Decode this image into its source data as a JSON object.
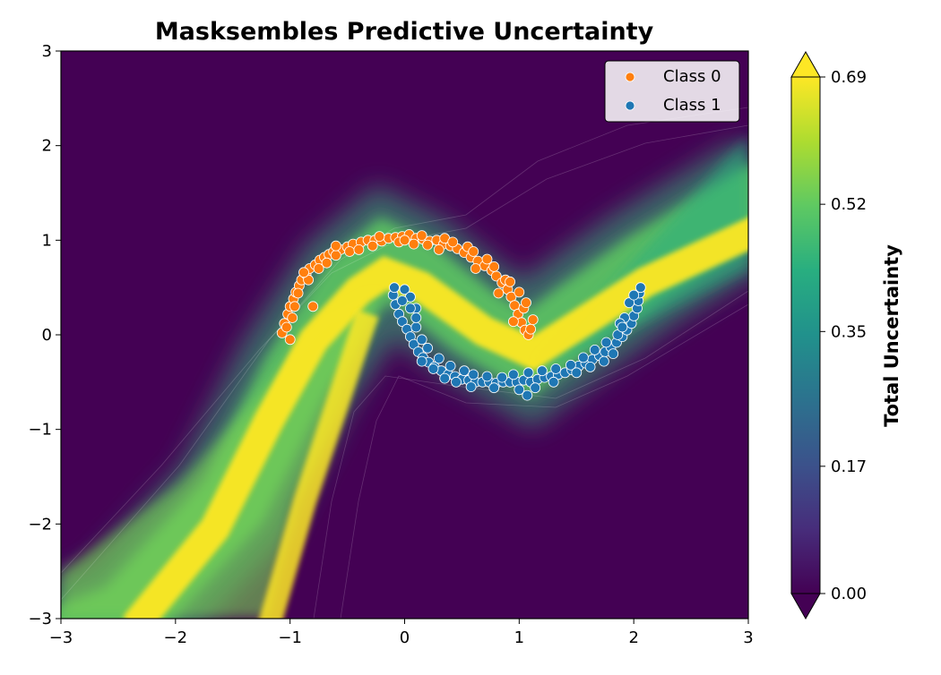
{
  "chart_data": {
    "type": "scatter",
    "title": "Masksembles Predictive Uncertainty",
    "xlabel": "",
    "ylabel": "",
    "xlim": [
      -3,
      3
    ],
    "ylim": [
      -3,
      3
    ],
    "xticks": [
      -3,
      -2,
      -1,
      0,
      1,
      2,
      3
    ],
    "yticks": [
      -3,
      -2,
      -1,
      0,
      1,
      2,
      3
    ],
    "xtick_labels": [
      "−3",
      "−2",
      "−1",
      "0",
      "1",
      "2",
      "3"
    ],
    "ytick_labels": [
      "−3",
      "−2",
      "−1",
      "0",
      "1",
      "2",
      "3"
    ],
    "grid": false,
    "legend_position": "top-right",
    "series": [
      {
        "name": "Class 0",
        "color": "#ff7f0e",
        "points": [
          [
            -1.07,
            0.02
          ],
          [
            -1.05,
            0.12
          ],
          [
            -1.02,
            0.22
          ],
          [
            -1.0,
            0.3
          ],
          [
            -0.97,
            0.38
          ],
          [
            -0.95,
            0.45
          ],
          [
            -0.92,
            0.52
          ],
          [
            -0.9,
            0.58
          ],
          [
            -0.86,
            0.64
          ],
          [
            -0.83,
            0.7
          ],
          [
            -0.78,
            0.74
          ],
          [
            -0.74,
            0.79
          ],
          [
            -0.7,
            0.82
          ],
          [
            -0.66,
            0.85
          ],
          [
            -0.62,
            0.88
          ],
          [
            -0.56,
            0.9
          ],
          [
            -0.5,
            0.93
          ],
          [
            -0.45,
            0.96
          ],
          [
            -0.38,
            0.98
          ],
          [
            -0.32,
            1.0
          ],
          [
            -0.26,
            1.0
          ],
          [
            -0.2,
            0.99
          ],
          [
            -0.14,
            1.02
          ],
          [
            -0.08,
            1.03
          ],
          [
            -0.02,
            1.04
          ],
          [
            0.04,
            1.06
          ],
          [
            0.1,
            1.02
          ],
          [
            0.16,
            1.01
          ],
          [
            0.22,
            0.99
          ],
          [
            0.28,
            1.0
          ],
          [
            0.34,
            0.96
          ],
          [
            0.4,
            0.94
          ],
          [
            0.46,
            0.91
          ],
          [
            0.52,
            0.87
          ],
          [
            0.58,
            0.82
          ],
          [
            0.64,
            0.78
          ],
          [
            0.7,
            0.73
          ],
          [
            0.76,
            0.68
          ],
          [
            0.8,
            0.62
          ],
          [
            0.85,
            0.55
          ],
          [
            0.9,
            0.48
          ],
          [
            0.93,
            0.4
          ],
          [
            0.96,
            0.31
          ],
          [
            0.99,
            0.22
          ],
          [
            1.02,
            0.13
          ],
          [
            1.05,
            0.05
          ],
          [
            1.08,
            0.0
          ],
          [
            1.1,
            0.06
          ],
          [
            1.12,
            0.16
          ],
          [
            1.0,
            0.45
          ],
          [
            0.88,
            0.58
          ],
          [
            0.72,
            0.8
          ],
          [
            0.55,
            0.93
          ],
          [
            0.35,
            1.02
          ],
          [
            0.15,
            1.05
          ],
          [
            -0.05,
            0.98
          ],
          [
            -0.28,
            0.94
          ],
          [
            -0.48,
            0.88
          ],
          [
            -0.68,
            0.76
          ],
          [
            -0.84,
            0.58
          ],
          [
            -0.96,
            0.3
          ],
          [
            -1.03,
            0.08
          ],
          [
            -0.98,
            0.18
          ],
          [
            -0.93,
            0.44
          ],
          [
            -0.88,
            0.66
          ],
          [
            -0.75,
            0.7
          ],
          [
            -0.6,
            0.84
          ],
          [
            -0.4,
            0.9
          ],
          [
            -0.22,
            1.04
          ],
          [
            0.0,
            1.0
          ],
          [
            0.2,
            0.95
          ],
          [
            0.42,
            0.98
          ],
          [
            0.6,
            0.88
          ],
          [
            0.78,
            0.72
          ],
          [
            0.92,
            0.56
          ],
          [
            1.04,
            0.28
          ],
          [
            0.95,
            0.14
          ],
          [
            -1.0,
            -0.05
          ],
          [
            -0.8,
            0.3
          ],
          [
            -0.6,
            0.94
          ],
          [
            0.08,
            0.96
          ],
          [
            0.3,
            0.9
          ],
          [
            0.62,
            0.7
          ],
          [
            0.82,
            0.44
          ],
          [
            1.06,
            0.34
          ]
        ]
      },
      {
        "name": "Class 1",
        "color": "#1f77b4",
        "points": [
          [
            -0.1,
            0.42
          ],
          [
            -0.08,
            0.32
          ],
          [
            -0.05,
            0.22
          ],
          [
            -0.02,
            0.14
          ],
          [
            0.02,
            0.06
          ],
          [
            0.05,
            -0.02
          ],
          [
            0.08,
            -0.1
          ],
          [
            0.12,
            -0.18
          ],
          [
            0.16,
            -0.24
          ],
          [
            0.21,
            -0.29
          ],
          [
            0.26,
            -0.34
          ],
          [
            0.32,
            -0.38
          ],
          [
            0.38,
            -0.42
          ],
          [
            0.44,
            -0.44
          ],
          [
            0.5,
            -0.47
          ],
          [
            0.56,
            -0.48
          ],
          [
            0.62,
            -0.5
          ],
          [
            0.68,
            -0.5
          ],
          [
            0.74,
            -0.5
          ],
          [
            0.8,
            -0.51
          ],
          [
            0.86,
            -0.5
          ],
          [
            0.92,
            -0.5
          ],
          [
            0.98,
            -0.5
          ],
          [
            1.04,
            -0.48
          ],
          [
            1.1,
            -0.5
          ],
          [
            1.16,
            -0.47
          ],
          [
            1.22,
            -0.45
          ],
          [
            1.28,
            -0.44
          ],
          [
            1.34,
            -0.42
          ],
          [
            1.4,
            -0.4
          ],
          [
            1.46,
            -0.37
          ],
          [
            1.52,
            -0.33
          ],
          [
            1.58,
            -0.3
          ],
          [
            1.64,
            -0.26
          ],
          [
            1.7,
            -0.22
          ],
          [
            1.75,
            -0.18
          ],
          [
            1.8,
            -0.13
          ],
          [
            1.85,
            -0.08
          ],
          [
            1.9,
            -0.02
          ],
          [
            1.94,
            0.05
          ],
          [
            1.98,
            0.12
          ],
          [
            2.0,
            0.2
          ],
          [
            2.03,
            0.28
          ],
          [
            2.04,
            0.36
          ],
          [
            2.05,
            0.44
          ],
          [
            2.06,
            0.5
          ],
          [
            -0.09,
            0.5
          ],
          [
            0.0,
            0.48
          ],
          [
            0.05,
            0.4
          ],
          [
            0.1,
            0.28
          ],
          [
            0.1,
            0.08
          ],
          [
            0.15,
            -0.05
          ],
          [
            0.2,
            -0.14
          ],
          [
            0.3,
            -0.25
          ],
          [
            0.4,
            -0.33
          ],
          [
            0.52,
            -0.38
          ],
          [
            0.6,
            -0.42
          ],
          [
            0.72,
            -0.44
          ],
          [
            0.85,
            -0.45
          ],
          [
            0.95,
            -0.42
          ],
          [
            1.08,
            -0.4
          ],
          [
            1.2,
            -0.38
          ],
          [
            1.32,
            -0.36
          ],
          [
            1.45,
            -0.32
          ],
          [
            1.56,
            -0.24
          ],
          [
            1.66,
            -0.16
          ],
          [
            1.76,
            -0.08
          ],
          [
            1.86,
            0.0
          ],
          [
            1.92,
            0.18
          ],
          [
            1.96,
            0.34
          ],
          [
            1.88,
            0.12
          ],
          [
            1.07,
            -0.64
          ],
          [
            1.0,
            -0.58
          ],
          [
            0.78,
            -0.56
          ],
          [
            0.58,
            -0.55
          ],
          [
            0.45,
            -0.5
          ],
          [
            0.35,
            -0.46
          ],
          [
            0.25,
            -0.36
          ],
          [
            0.15,
            -0.28
          ],
          [
            0.05,
            0.28
          ],
          [
            -0.02,
            0.36
          ],
          [
            0.1,
            0.18
          ],
          [
            1.14,
            -0.56
          ],
          [
            1.3,
            -0.5
          ],
          [
            1.5,
            -0.4
          ],
          [
            1.62,
            -0.34
          ],
          [
            1.74,
            -0.28
          ],
          [
            1.82,
            -0.2
          ],
          [
            1.9,
            0.08
          ],
          [
            2.0,
            0.42
          ]
        ]
      }
    ],
    "heatmap": {
      "description": "",
      "colormap": "viridis"
    },
    "colorbar": {
      "label": "Total Uncertainty",
      "range": [
        0.0,
        0.69
      ],
      "ticks": [
        0.0,
        0.17,
        0.35,
        0.52,
        0.69
      ],
      "tick_labels": [
        "0.00",
        "0.17",
        "0.35",
        "0.52",
        "0.69"
      ]
    }
  },
  "colors": {
    "viridis_low": "#440154",
    "viridis_mid": "#21918c",
    "viridis_high": "#fde725",
    "class0": "#ff7f0e",
    "class1": "#1f77b4"
  }
}
